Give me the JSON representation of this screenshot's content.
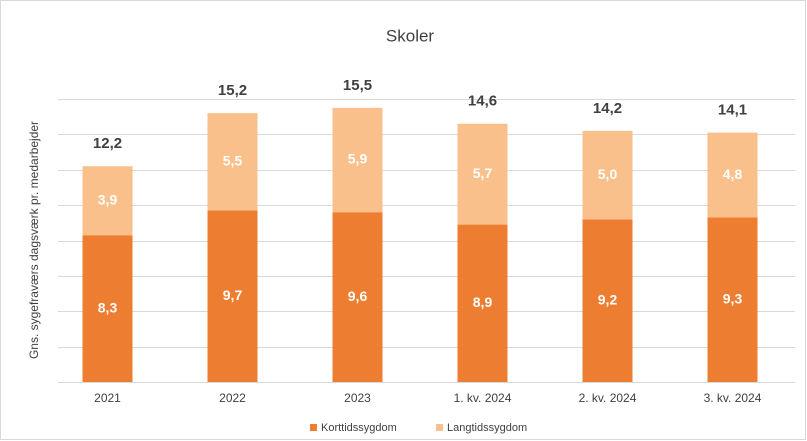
{
  "chart_data": {
    "type": "stacked-bar",
    "title": "Skoler",
    "y_label": "Gns. sygefraværs dagsværk pr. medarbejder",
    "categories": [
      "2021",
      "2022",
      "2023",
      "1. kv. 2024",
      "2. kv. 2024",
      "3. kv. 2024"
    ],
    "series": [
      {
        "name": "Korttidssygdom",
        "color": "#ed7d31",
        "values": [
          8.3,
          9.7,
          9.6,
          8.9,
          9.2,
          9.3
        ],
        "value_labels": [
          "8,3",
          "9,7",
          "9,6",
          "8,9",
          "9,2",
          "9,3"
        ]
      },
      {
        "name": "Langtidssygdom",
        "color": "#f9c08b",
        "values": [
          3.9,
          5.5,
          5.9,
          5.7,
          5.0,
          4.8
        ],
        "value_labels": [
          "3,9",
          "5,5",
          "5,9",
          "5,7",
          "5,0",
          "4,8"
        ]
      }
    ],
    "totals": [
      12.2,
      15.2,
      15.5,
      14.6,
      14.2,
      14.1
    ],
    "totals_labels": [
      "12,2",
      "15,2",
      "15,5",
      "14,6",
      "14,2",
      "14,1"
    ],
    "ylim": [
      0,
      16
    ],
    "yticks": [
      0,
      2,
      4,
      6,
      8,
      10,
      12,
      14,
      16
    ],
    "grid": true,
    "legend": "bottom"
  }
}
